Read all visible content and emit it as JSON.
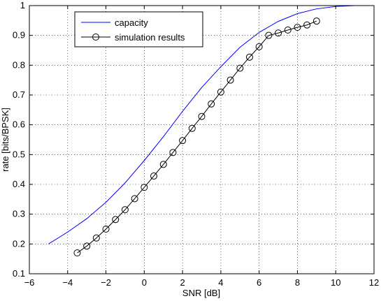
{
  "chart_data": {
    "type": "line",
    "title": "",
    "xlabel": "SNR [dB]",
    "ylabel": "rate [bits/BPSK]",
    "xlim": [
      -6,
      12
    ],
    "ylim": [
      0.1,
      1
    ],
    "xticks": [
      -6,
      -4,
      -2,
      0,
      2,
      4,
      6,
      8,
      10,
      12
    ],
    "xtick_labels": [
      "−6",
      "−4",
      "−2",
      "0",
      "2",
      "4",
      "6",
      "8",
      "10",
      "12"
    ],
    "yticks": [
      0.1,
      0.2,
      0.3,
      0.4,
      0.5,
      0.6,
      0.7,
      0.8,
      0.9,
      1
    ],
    "ytick_labels": [
      "0.1",
      "0.2",
      "0.3",
      "0.4",
      "0.5",
      "0.6",
      "0.7",
      "0.8",
      "0.9",
      "1"
    ],
    "grid": true,
    "legend_position": "top-left",
    "series": [
      {
        "name": "capacity",
        "color": "#0000ff",
        "marker": "none",
        "x": [
          -5,
          -4,
          -3,
          -2,
          -1,
          0,
          1,
          2,
          3,
          4,
          5,
          6,
          7,
          8,
          9,
          10,
          11,
          12
        ],
        "values": [
          0.2,
          0.24,
          0.285,
          0.34,
          0.405,
          0.48,
          0.56,
          0.645,
          0.725,
          0.795,
          0.86,
          0.91,
          0.947,
          0.973,
          0.989,
          0.997,
          1.0,
          1.0
        ]
      },
      {
        "name": "simulation results",
        "color": "#000000",
        "marker": "circle",
        "x": [
          -3.5,
          -3.0,
          -2.5,
          -2.0,
          -1.5,
          -1.0,
          -0.5,
          0.0,
          0.5,
          1.0,
          1.5,
          2.0,
          2.5,
          3.0,
          3.5,
          4.0,
          4.5,
          5.0,
          5.5,
          6.0,
          6.5,
          7.0,
          7.5,
          8.0,
          8.5,
          9.0
        ],
        "values": [
          0.17,
          0.193,
          0.22,
          0.25,
          0.282,
          0.315,
          0.352,
          0.39,
          0.428,
          0.467,
          0.507,
          0.547,
          0.588,
          0.628,
          0.67,
          0.71,
          0.75,
          0.79,
          0.827,
          0.862,
          0.9,
          0.908,
          0.918,
          0.927,
          0.935,
          0.948
        ]
      }
    ]
  }
}
